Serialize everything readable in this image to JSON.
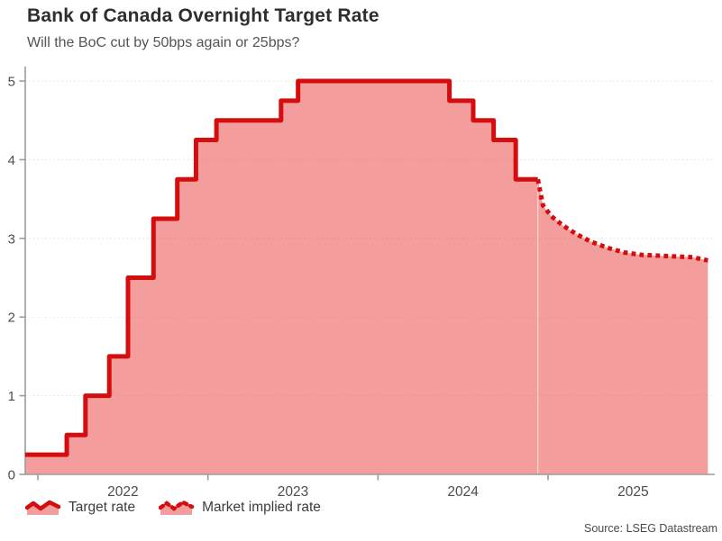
{
  "chart": {
    "title": "Bank of Canada Overnight Target Rate",
    "subtitle": "Will the BoC cut by 50bps again or 25bps?",
    "source": "Source: LSEG Datastream",
    "legend": [
      {
        "label": "Target rate",
        "style": "solid"
      },
      {
        "label": "Market implied rate",
        "style": "dotted"
      }
    ]
  },
  "chart_data": {
    "type": "area",
    "title": "Bank of Canada Overnight Target Rate",
    "subtitle": "Will the BoC cut by 50bps again or 25bps?",
    "xlabel": "",
    "ylabel": "",
    "ylim": [
      0,
      5
    ],
    "x_range_decimal_years": [
      2021.925,
      2025.94
    ],
    "grid": "horizontal-dotted",
    "legend_position": "bottom-left",
    "y_axis": {
      "ticks": [
        0,
        1,
        2,
        3,
        4,
        5
      ]
    },
    "x_axis": {
      "tick_years": [
        2022,
        2023,
        2024,
        2025
      ],
      "labels": [
        "2022",
        "2023",
        "2024",
        "2025"
      ]
    },
    "series": [
      {
        "name": "Target rate",
        "type": "step-area-solid",
        "points": [
          [
            2021.925,
            0.25
          ],
          [
            2022.17,
            0.5
          ],
          [
            2022.28,
            1.0
          ],
          [
            2022.42,
            1.5
          ],
          [
            2022.53,
            2.5
          ],
          [
            2022.68,
            3.25
          ],
          [
            2022.82,
            3.75
          ],
          [
            2022.93,
            4.25
          ],
          [
            2023.05,
            4.5
          ],
          [
            2023.43,
            4.75
          ],
          [
            2023.53,
            5.0
          ],
          [
            2024.42,
            4.75
          ],
          [
            2024.56,
            4.5
          ],
          [
            2024.68,
            4.25
          ],
          [
            2024.81,
            3.75
          ],
          [
            2024.94,
            3.75
          ]
        ]
      },
      {
        "name": "Market implied rate",
        "type": "line-area-dotted",
        "points": [
          [
            2024.94,
            3.75
          ],
          [
            2024.97,
            3.42
          ],
          [
            2025.02,
            3.28
          ],
          [
            2025.09,
            3.16
          ],
          [
            2025.17,
            3.05
          ],
          [
            2025.25,
            2.96
          ],
          [
            2025.35,
            2.88
          ],
          [
            2025.45,
            2.82
          ],
          [
            2025.55,
            2.79
          ],
          [
            2025.65,
            2.78
          ],
          [
            2025.75,
            2.77
          ],
          [
            2025.85,
            2.76
          ],
          [
            2025.94,
            2.72
          ]
        ]
      }
    ],
    "colors": {
      "line": "#d40d0e",
      "fill": "#f49d9d",
      "axis": "#9b9b9b",
      "grid": "rgba(120,120,120,0.22)",
      "text": "#4d4d4d"
    }
  }
}
